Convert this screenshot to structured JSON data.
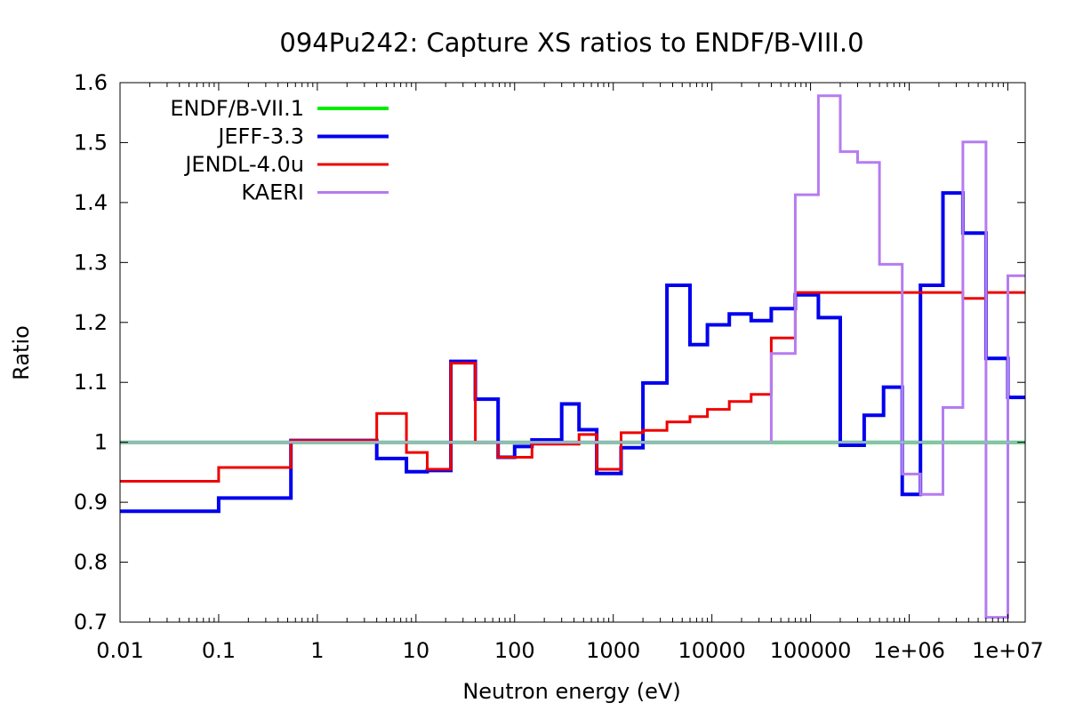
{
  "chart_data": {
    "type": "line",
    "title": "094Pu242: Capture XS ratios to ENDF/B-VIII.0",
    "xlabel": "Neutron energy (eV)",
    "ylabel": "Ratio",
    "xscale": "log",
    "xlim": [
      0.01,
      15000000
    ],
    "ylim": [
      0.7,
      1.6
    ],
    "x_ticks": [
      {
        "value": 0.01,
        "label": "0.01"
      },
      {
        "value": 0.1,
        "label": "0.1"
      },
      {
        "value": 1,
        "label": "1"
      },
      {
        "value": 10,
        "label": "10"
      },
      {
        "value": 100,
        "label": "100"
      },
      {
        "value": 1000,
        "label": "1000"
      },
      {
        "value": 10000,
        "label": "10000"
      },
      {
        "value": 100000,
        "label": "100000"
      },
      {
        "value": 1000000,
        "label": "1e+06"
      },
      {
        "value": 10000000,
        "label": "1e+07"
      }
    ],
    "y_ticks": [
      {
        "value": 0.7,
        "label": "0.7"
      },
      {
        "value": 0.8,
        "label": "0.8"
      },
      {
        "value": 0.9,
        "label": "0.9"
      },
      {
        "value": 1.0,
        "label": "1"
      },
      {
        "value": 1.1,
        "label": "1.1"
      },
      {
        "value": 1.2,
        "label": "1.2"
      },
      {
        "value": 1.3,
        "label": "1.3"
      },
      {
        "value": 1.4,
        "label": "1.4"
      },
      {
        "value": 1.5,
        "label": "1.5"
      },
      {
        "value": 1.6,
        "label": "1.6"
      }
    ],
    "legend_position": "top-left",
    "series": [
      {
        "name": "ENDF/B-VII.1",
        "color": "#00ee00",
        "edges": [
          0.01,
          15000000
        ],
        "values": [
          1.0
        ]
      },
      {
        "name": "JEFF-3.3",
        "color": "#0000ee",
        "edges": [
          0.01,
          0.1,
          0.54,
          4,
          8,
          13,
          22.6,
          40,
          68,
          100,
          150,
          300,
          450,
          680,
          1200,
          2000,
          3500,
          6000,
          9000,
          15000,
          25000,
          40000,
          70000,
          120000,
          200000,
          350000,
          550000,
          850000,
          1300000,
          2200000,
          3500000,
          6000000,
          10000000,
          15000000
        ],
        "values": [
          0.885,
          0.907,
          1.003,
          0.973,
          0.951,
          0.953,
          1.135,
          1.072,
          0.975,
          0.993,
          1.004,
          1.064,
          1.021,
          0.948,
          0.991,
          1.099,
          1.262,
          1.163,
          1.196,
          1.214,
          1.203,
          1.223,
          1.246,
          1.208,
          0.995,
          1.045,
          1.092,
          0.913,
          1.262,
          1.416,
          1.349,
          1.14,
          1.075
        ]
      },
      {
        "name": "JENDL-4.0u",
        "color": "#ee0000",
        "edges": [
          0.01,
          0.1,
          0.54,
          4,
          8,
          13,
          22.6,
          40,
          68,
          150,
          450,
          680,
          1200,
          2000,
          3500,
          6000,
          9000,
          15000,
          25000,
          40000,
          70000,
          3500000,
          6000000,
          15000000
        ],
        "values": [
          0.935,
          0.958,
          1.003,
          1.048,
          0.983,
          0.955,
          1.132,
          1.0,
          0.975,
          0.997,
          1.013,
          0.955,
          1.016,
          1.02,
          1.034,
          1.043,
          1.055,
          1.068,
          1.08,
          1.174,
          1.25,
          1.24,
          1.25
        ]
      },
      {
        "name": "KAERI",
        "color": "#b57cf0",
        "edges": [
          0.01,
          40000,
          70000,
          120000,
          200000,
          300000,
          500000,
          850000,
          1300000,
          2200000,
          3500000,
          6000000,
          10000000,
          15000000
        ],
        "values": [
          1.0,
          1.148,
          1.413,
          1.578,
          1.485,
          1.467,
          1.297,
          0.947,
          0.913,
          1.058,
          1.501,
          0.708,
          1.278
        ]
      }
    ],
    "reference_line": {
      "y": 1.0,
      "color": "#9bb3c9"
    }
  }
}
